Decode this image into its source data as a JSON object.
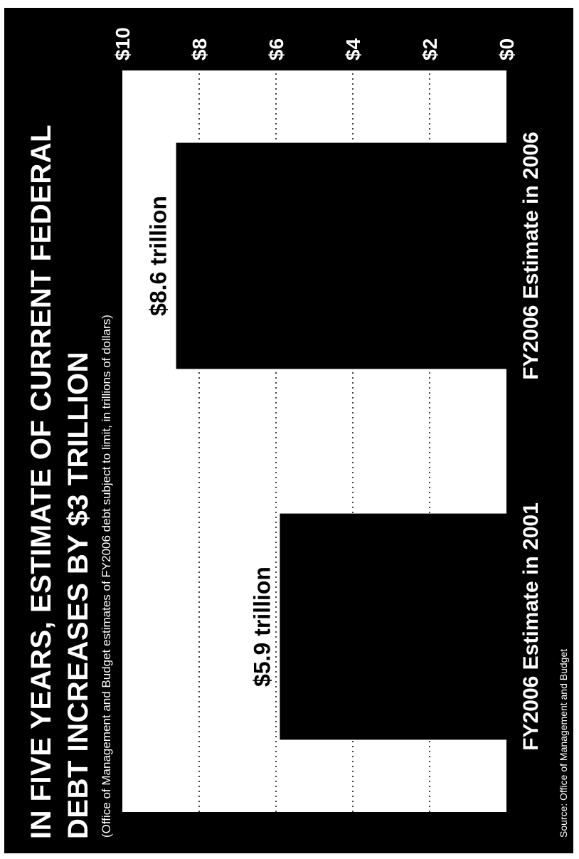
{
  "chart_data": {
    "type": "bar",
    "title_line1": "IN FIVE YEARS, ESTIMATE OF CURRENT FEDERAL",
    "title_line2": "DEBT INCREASES BY $3 TRILLION",
    "subtitle": "(Office of Management and Budget estimates of FY2006 debt subject to limit, in trillions of dollars)",
    "source": "Source:  Office of Management and Budget",
    "categories": [
      "FY2006 Estimate in 2001",
      "FY2006 Estimate in 2006"
    ],
    "values": [
      5.9,
      8.6
    ],
    "data_labels": [
      "$5.9 trillion",
      "$8.6 trillion"
    ],
    "ylim": [
      0,
      10
    ],
    "yticks": [
      0,
      2,
      4,
      6,
      8,
      10
    ],
    "ytick_labels": [
      "$0",
      "$2",
      "$4",
      "$6",
      "$8",
      "$10"
    ],
    "grid": true,
    "orientation": "rotated 90 degrees counter-clockwise",
    "colors": {
      "background": "#000000",
      "plot_area": "#ffffff",
      "bars": "#000000",
      "text": "#ffffff",
      "gridlines": "#000000"
    }
  }
}
